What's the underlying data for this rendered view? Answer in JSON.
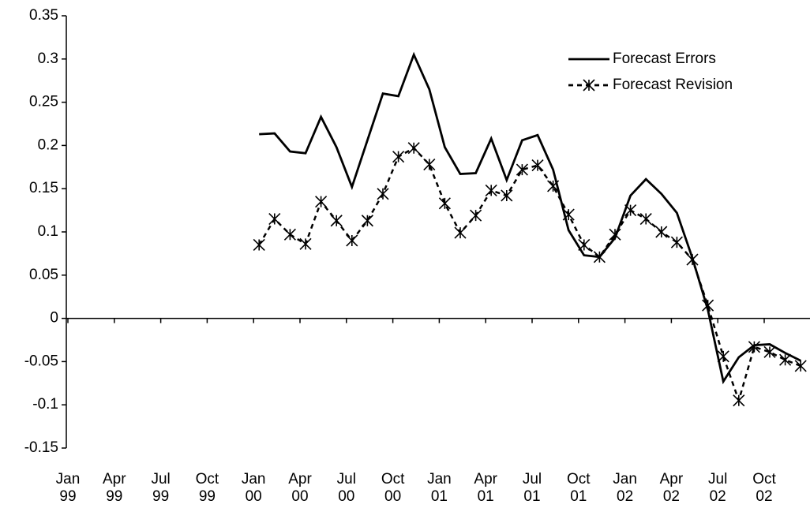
{
  "chart_data": {
    "type": "line",
    "categories": [
      "Jan 99",
      null,
      null,
      "Apr 99",
      null,
      null,
      "Jul 99",
      null,
      null,
      "Oct 99",
      null,
      null,
      "Jan 00",
      null,
      null,
      "Apr 00",
      null,
      null,
      "Jul 00",
      null,
      null,
      "Oct 00",
      null,
      null,
      "Jan 01",
      null,
      null,
      "Apr 01",
      null,
      null,
      "Jul 01",
      null,
      null,
      "Oct 01",
      null,
      null,
      "Jan 02",
      null,
      null,
      "Apr 02",
      null,
      null,
      "Jul 02",
      null,
      null,
      "Oct 02",
      null,
      null
    ],
    "series": [
      {
        "name": "Forecast Errors",
        "color": "#000000",
        "style": "solid",
        "marker": "none",
        "values": [
          null,
          null,
          null,
          null,
          null,
          null,
          null,
          null,
          null,
          null,
          null,
          null,
          0.213,
          0.214,
          0.193,
          0.191,
          0.233,
          0.198,
          0.152,
          0.206,
          0.26,
          0.257,
          0.305,
          0.265,
          0.198,
          0.167,
          0.168,
          0.208,
          0.16,
          0.206,
          0.212,
          0.172,
          0.102,
          0.073,
          0.071,
          0.093,
          0.142,
          0.161,
          0.144,
          0.122,
          0.07,
          0.01,
          -0.073,
          -0.045,
          -0.031,
          -0.03,
          -0.04,
          -0.049
        ]
      },
      {
        "name": "Forecast Revision",
        "color": "#000000",
        "style": "dashed",
        "marker": "star",
        "values": [
          null,
          null,
          null,
          null,
          null,
          null,
          null,
          null,
          null,
          null,
          null,
          null,
          0.085,
          0.115,
          0.097,
          0.086,
          0.135,
          0.113,
          0.09,
          0.113,
          0.144,
          0.187,
          0.197,
          0.178,
          0.133,
          0.099,
          0.119,
          0.148,
          0.142,
          0.172,
          0.177,
          0.153,
          0.12,
          0.085,
          0.071,
          0.097,
          0.125,
          0.115,
          0.1,
          0.088,
          0.068,
          0.015,
          -0.044,
          -0.095,
          -0.033,
          -0.039,
          -0.048,
          -0.055
        ]
      }
    ],
    "ylim": [
      -0.15,
      0.35
    ],
    "yticks": [
      -0.15,
      -0.1,
      -0.05,
      0,
      0.05,
      0.1,
      0.15,
      0.2,
      0.25,
      0.3,
      0.35
    ],
    "legend": "top-right"
  }
}
